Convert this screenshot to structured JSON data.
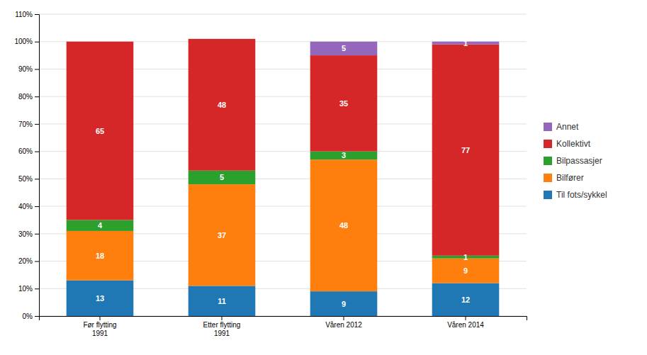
{
  "chart_data": {
    "type": "bar",
    "stacked": true,
    "categories": [
      "Før flytting\n1991",
      "Etter flytting\n1991",
      "Våren 2012",
      "Våren 2014"
    ],
    "series": [
      {
        "name": "Til fots/sykkel",
        "values": [
          13,
          11,
          9,
          12
        ]
      },
      {
        "name": "Bilfører",
        "values": [
          18,
          37,
          48,
          9
        ]
      },
      {
        "name": "Bilpassasjer",
        "values": [
          4,
          5,
          3,
          1
        ]
      },
      {
        "name": "Kollektivt",
        "values": [
          65,
          48,
          35,
          77
        ]
      },
      {
        "name": "Annet",
        "values": [
          0,
          0,
          5,
          1
        ]
      }
    ],
    "ylim": [
      0,
      110
    ],
    "yticks": [
      {
        "value": 0,
        "label": "0%"
      },
      {
        "value": 10,
        "label": "10%"
      },
      {
        "value": 20,
        "label": "20%"
      },
      {
        "value": 30,
        "label": "30%"
      },
      {
        "value": 40,
        "label": "40%"
      },
      {
        "value": 50,
        "label": "50%"
      },
      {
        "value": 60,
        "label": "60%"
      },
      {
        "value": 70,
        "label": "70%"
      },
      {
        "value": 80,
        "label": "80%"
      },
      {
        "value": 90,
        "label": "90%"
      },
      {
        "value": 100,
        "label": "100%"
      },
      {
        "value": 110,
        "label": "110%"
      }
    ],
    "grid": true,
    "legend": "right",
    "data_labels": true
  }
}
